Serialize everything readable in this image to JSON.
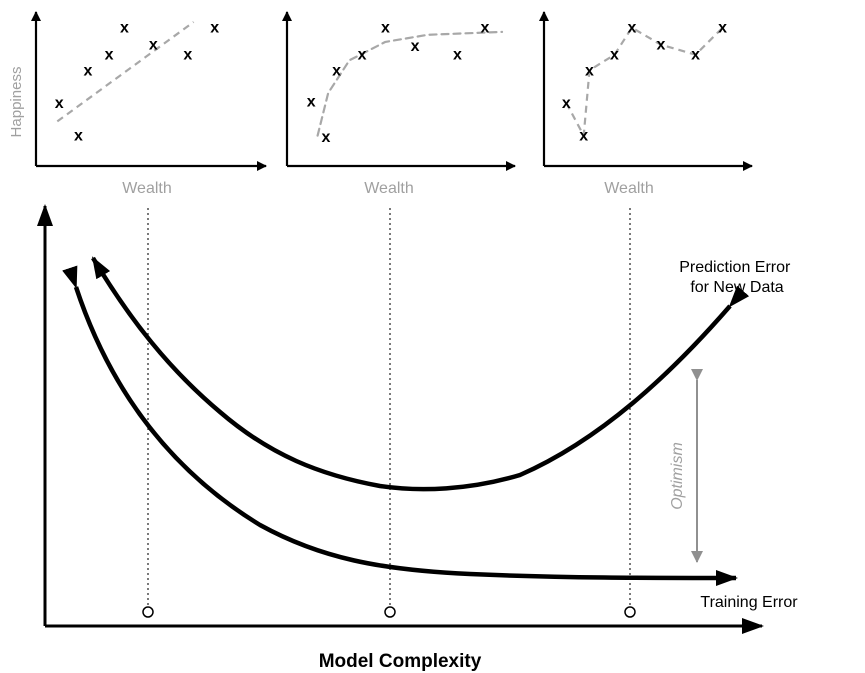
{
  "panels": [
    {
      "ylabel": "Happiness",
      "xlabel": "Wealth",
      "points": [
        [
          0.1,
          0.43
        ],
        [
          0.2,
          0.2
        ],
        [
          0.25,
          0.66
        ],
        [
          0.36,
          0.77
        ],
        [
          0.44,
          0.96
        ],
        [
          0.59,
          0.84
        ],
        [
          0.77,
          0.77
        ],
        [
          0.91,
          0.96
        ]
      ],
      "fit": [
        [
          0.09,
          0.3
        ],
        [
          0.8,
          1.0
        ]
      ],
      "marker": "x"
    },
    {
      "ylabel": "",
      "xlabel": "Wealth",
      "points": [
        [
          0.1,
          0.44
        ],
        [
          0.17,
          0.19
        ],
        [
          0.22,
          0.66
        ],
        [
          0.34,
          0.77
        ],
        [
          0.45,
          0.96
        ],
        [
          0.59,
          0.83
        ],
        [
          0.79,
          0.77
        ],
        [
          0.92,
          0.96
        ]
      ],
      "fit": [
        [
          0.13,
          0.2
        ],
        [
          0.18,
          0.5
        ],
        [
          0.28,
          0.73
        ],
        [
          0.45,
          0.86
        ],
        [
          0.65,
          0.91
        ],
        [
          1.0,
          0.93
        ]
      ],
      "marker": "x"
    },
    {
      "ylabel": "",
      "xlabel": "Wealth",
      "points": [
        [
          0.1,
          0.43
        ],
        [
          0.19,
          0.2
        ],
        [
          0.22,
          0.66
        ],
        [
          0.35,
          0.77
        ],
        [
          0.44,
          0.96
        ],
        [
          0.59,
          0.84
        ],
        [
          0.77,
          0.77
        ],
        [
          0.91,
          0.96
        ]
      ],
      "fit": [
        [
          0.1,
          0.43
        ],
        [
          0.19,
          0.2
        ],
        [
          0.22,
          0.66
        ],
        [
          0.35,
          0.77
        ],
        [
          0.44,
          0.96
        ],
        [
          0.59,
          0.84
        ],
        [
          0.77,
          0.77
        ],
        [
          0.91,
          0.96
        ]
      ],
      "marker": "x"
    }
  ],
  "main": {
    "xlabel": "Model Complexity",
    "curves": [
      {
        "label_lines": [
          "Prediction Error",
          "for New Data"
        ]
      },
      {
        "label_lines": [
          "Training Error"
        ]
      }
    ],
    "optimism_label": "Optimism"
  },
  "colors": {
    "ink": "#000000",
    "gray": "#a0a0a0",
    "dashed_fit": "#a8a8a8",
    "optimism_arrow": "#909090"
  }
}
